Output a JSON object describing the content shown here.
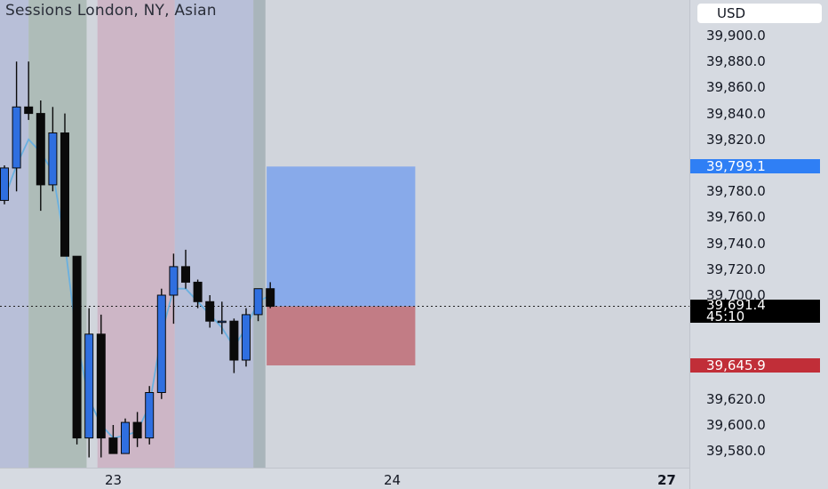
{
  "chart_title": "Sessions London, NY, Asian",
  "currency": "USD",
  "colors": {
    "up_candle": "#2f6fe0",
    "down_candle": "#0a0a0a",
    "ma_line": "#6ab0e0",
    "session_london": "#aebcb8",
    "session_ny": "#cdb6c6",
    "session_asian": "#b8bfd8",
    "session_dark": "#a9b5bb",
    "target_zone": "#88aaea",
    "stop_zone": "#c27c85",
    "target_tag": "#2f7ff5",
    "stop_tag": "#c12e38",
    "current_tag": "#000000"
  },
  "price_axis": {
    "ticks": [
      "39,900.0",
      "39,880.0",
      "39,860.0",
      "39,840.0",
      "39,820.0",
      "39,780.0",
      "39,760.0",
      "39,740.0",
      "39,720.0",
      "39,700.0",
      "39,620.0",
      "39,600.0",
      "39,580.0"
    ],
    "tick_values": [
      39900,
      39880,
      39860,
      39840,
      39820,
      39780,
      39760,
      39740,
      39720,
      39700,
      39620,
      39600,
      39580
    ],
    "target_label": "39,799.1",
    "target_value": 39799.1,
    "current_label": "39,691.4",
    "current_value": 39691.4,
    "countdown": "45:10",
    "stop_label": "39,645.9",
    "stop_value": 39645.9
  },
  "time_axis": {
    "labels": [
      "23",
      "24",
      "27"
    ]
  },
  "chart_data": {
    "type": "candlestick",
    "ohlc": [
      {
        "o": 39773,
        "h": 39800,
        "l": 39770,
        "c": 39798
      },
      {
        "o": 39798,
        "h": 39880,
        "l": 39780,
        "c": 39845
      },
      {
        "o": 39845,
        "h": 39880,
        "l": 39835,
        "c": 39840
      },
      {
        "o": 39840,
        "h": 39850,
        "l": 39765,
        "c": 39785
      },
      {
        "o": 39785,
        "h": 39845,
        "l": 39780,
        "c": 39825
      },
      {
        "o": 39825,
        "h": 39840,
        "l": 39730,
        "c": 39730
      },
      {
        "o": 39730,
        "h": 39730,
        "l": 39585,
        "c": 39590
      },
      {
        "o": 39590,
        "h": 39690,
        "l": 39575,
        "c": 39670
      },
      {
        "o": 39670,
        "h": 39685,
        "l": 39575,
        "c": 39590
      },
      {
        "o": 39590,
        "h": 39600,
        "l": 39578,
        "c": 39578
      },
      {
        "o": 39578,
        "h": 39605,
        "l": 39580,
        "c": 39602
      },
      {
        "o": 39602,
        "h": 39610,
        "l": 39583,
        "c": 39590
      },
      {
        "o": 39590,
        "h": 39630,
        "l": 39585,
        "c": 39625
      },
      {
        "o": 39625,
        "h": 39705,
        "l": 39620,
        "c": 39700
      },
      {
        "o": 39700,
        "h": 39732,
        "l": 39678,
        "c": 39722
      },
      {
        "o": 39722,
        "h": 39735,
        "l": 39705,
        "c": 39710
      },
      {
        "o": 39710,
        "h": 39712,
        "l": 39690,
        "c": 39695
      },
      {
        "o": 39695,
        "h": 39700,
        "l": 39675,
        "c": 39680
      },
      {
        "o": 39680,
        "h": 39695,
        "l": 39670,
        "c": 39680
      },
      {
        "o": 39680,
        "h": 39682,
        "l": 39640,
        "c": 39650
      },
      {
        "o": 39650,
        "h": 39690,
        "l": 39645,
        "c": 39685
      },
      {
        "o": 39685,
        "h": 39705,
        "l": 39680,
        "c": 39705
      },
      {
        "o": 39705,
        "h": 39710,
        "l": 39690,
        "c": 39691.4
      }
    ],
    "ma": [
      39775,
      39800,
      39820,
      39810,
      39795,
      39740,
      39665,
      39620,
      39600,
      39590,
      39592,
      39595,
      39615,
      39670,
      39705,
      39705,
      39695,
      39685,
      39675,
      39660,
      39675,
      39695,
      39700
    ],
    "sessions": [
      {
        "name": "asian",
        "start": -0.5,
        "end": 2
      },
      {
        "name": "london",
        "start": 2,
        "end": 6.8
      },
      {
        "name": "ny",
        "start": 7.7,
        "end": 14.1
      },
      {
        "name": "asian",
        "start": 14.1,
        "end": 20.6
      },
      {
        "name": "dark",
        "start": 20.6,
        "end": 21.6
      }
    ],
    "position": {
      "entry": 39691.4,
      "target": 39799.1,
      "stop": 39645.9,
      "start_index": 21.7,
      "end_index": 34.0
    },
    "y_range": [
      39570,
      39920
    ]
  }
}
